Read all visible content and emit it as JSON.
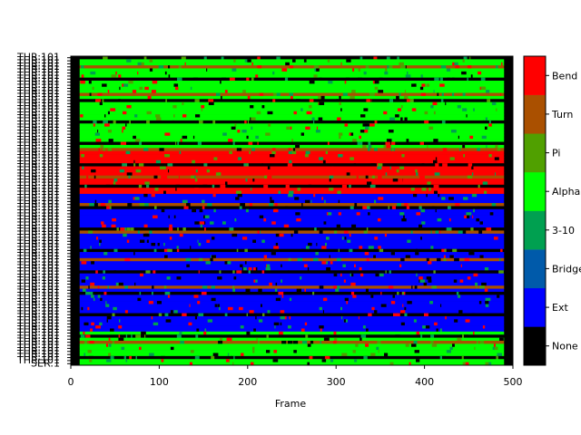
{
  "chart_data": {
    "type": "heatmap",
    "title": "",
    "xlabel": "Frame",
    "ylabel": "",
    "xlim": [
      0,
      500
    ],
    "xticks": [
      0,
      100,
      200,
      300,
      400,
      500
    ],
    "residue_range": {
      "first_label": "SER:1",
      "last_label": "THR:101"
    },
    "residue_count": 101,
    "legend_position": "right colorbar",
    "categories": [
      {
        "name": "None",
        "color": "#000000"
      },
      {
        "name": "Ext",
        "color": "#0000ff"
      },
      {
        "name": "Bridge",
        "color": "#005aaa"
      },
      {
        "name": "3-10",
        "color": "#00a050"
      },
      {
        "name": "Alpha",
        "color": "#00ff00"
      },
      {
        "name": "Pi",
        "color": "#50a000"
      },
      {
        "name": "Turn",
        "color": "#aa5000"
      },
      {
        "name": "Bend",
        "color": "#ff0000"
      }
    ],
    "dominant_state_by_residue_band": [
      {
        "from_top": 0,
        "to_top": 30,
        "state": "Alpha"
      },
      {
        "from_top": 30,
        "to_top": 45,
        "state": "Bend"
      },
      {
        "from_top": 45,
        "to_top": 70,
        "state": "Ext"
      },
      {
        "from_top": 70,
        "to_top": 90,
        "state": "Ext"
      },
      {
        "from_top": 90,
        "to_top": 101,
        "state": "Alpha"
      }
    ]
  }
}
